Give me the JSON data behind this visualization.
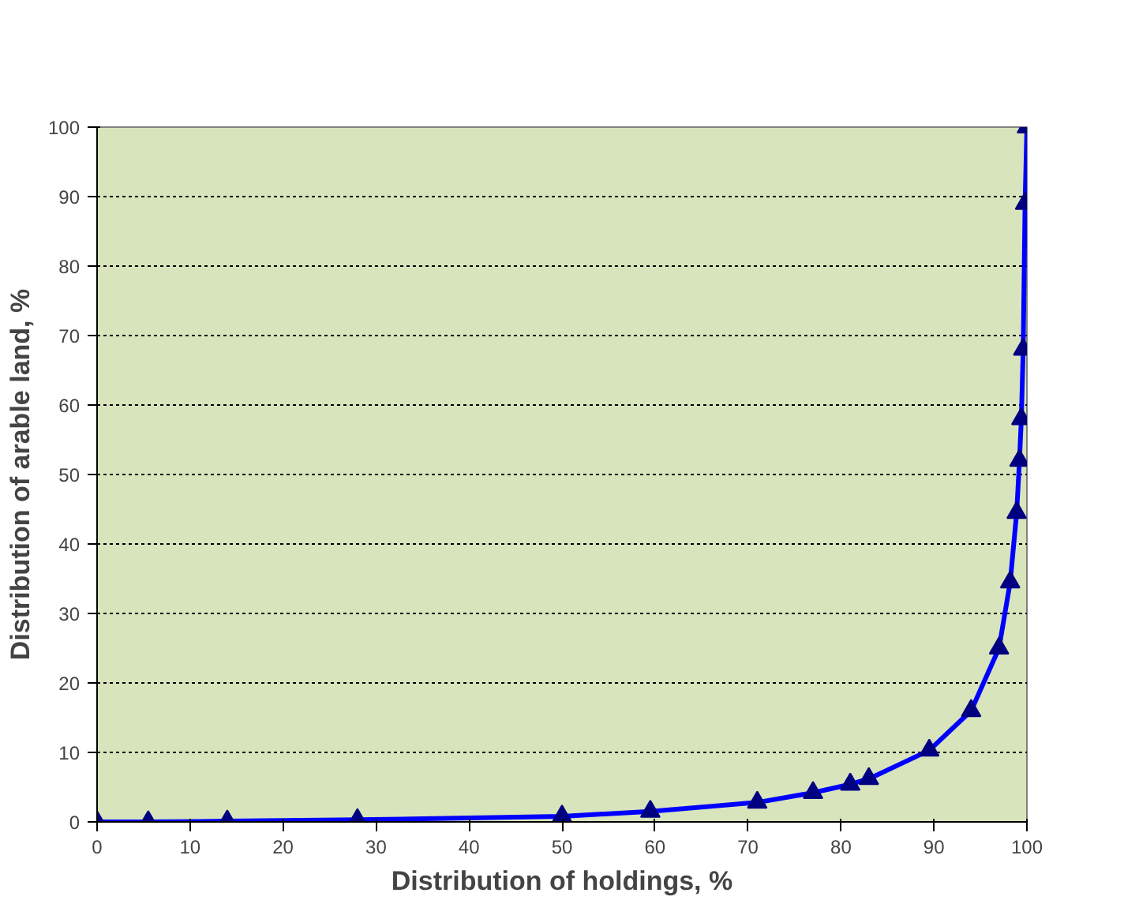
{
  "chart_data": {
    "type": "line",
    "xlabel": "Distribution of holdings, %",
    "ylabel": "Distribution of arable land, %",
    "x": [
      0,
      5.5,
      14,
      28,
      50,
      59.5,
      71,
      77,
      81,
      83,
      89.5,
      94,
      97,
      98.2,
      98.9,
      99.2,
      99.4,
      99.6,
      99.8,
      100
    ],
    "series": [
      {
        "color": "#0000ff",
        "values": [
          0,
          0,
          0.1,
          0.3,
          0.8,
          1.5,
          2.8,
          4.2,
          5.4,
          6.2,
          10.3,
          16,
          25,
          34.5,
          44.5,
          52,
          58,
          68,
          89,
          100
        ]
      }
    ],
    "xlim": [
      0,
      100
    ],
    "ylim": [
      0,
      100
    ],
    "xticks": [
      0,
      10,
      20,
      30,
      40,
      50,
      60,
      70,
      80,
      90,
      100
    ],
    "yticks": [
      0,
      10,
      20,
      30,
      40,
      50,
      60,
      70,
      80,
      90,
      100
    ],
    "grid": "y",
    "marker": "triangle",
    "line_style": "solid"
  }
}
